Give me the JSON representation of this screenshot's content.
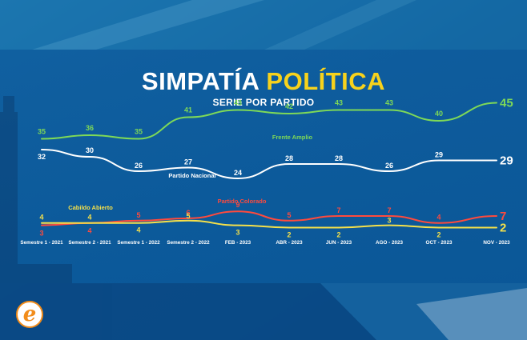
{
  "header": {
    "title_white": "SIMPATÍA",
    "title_accent": "POLÍTICA",
    "subtitle": "SERIE POR PARTIDO"
  },
  "brand": {
    "logo_letter": "e",
    "logo_color": "#f28c1a"
  },
  "chart_data": {
    "type": "line",
    "title": "SIMPATÍA POLÍTICA",
    "subtitle": "SERIE POR PARTIDO",
    "categories": [
      "Semestre 1 - 2021",
      "Semestre 2 - 2021",
      "Semestre 1 - 2022",
      "Semestre 2 - 2022",
      "FEB - 2023",
      "ABR - 2023",
      "JUN - 2023",
      "AGO - 2023",
      "OCT - 2023",
      "NOV - 2023"
    ],
    "xlabel": "",
    "ylabel": "",
    "grid": false,
    "series": [
      {
        "name": "Frente Amplio",
        "color": "#7ed957",
        "values": [
          35,
          36,
          35,
          41,
          43,
          42,
          43,
          43,
          40,
          45
        ]
      },
      {
        "name": "Partido Nacional",
        "color": "#ffffff",
        "values": [
          32,
          30,
          26,
          27,
          24,
          28,
          28,
          26,
          29,
          29
        ]
      },
      {
        "name": "Partido Colorado",
        "color": "#ff4a3d",
        "values": [
          3,
          4,
          5,
          6,
          9,
          5,
          7,
          7,
          4,
          7
        ]
      },
      {
        "name": "Cabildo Abierto",
        "color": "#f5e04a",
        "values": [
          4,
          4,
          4,
          5,
          3,
          2,
          2,
          3,
          2,
          2
        ]
      }
    ]
  }
}
